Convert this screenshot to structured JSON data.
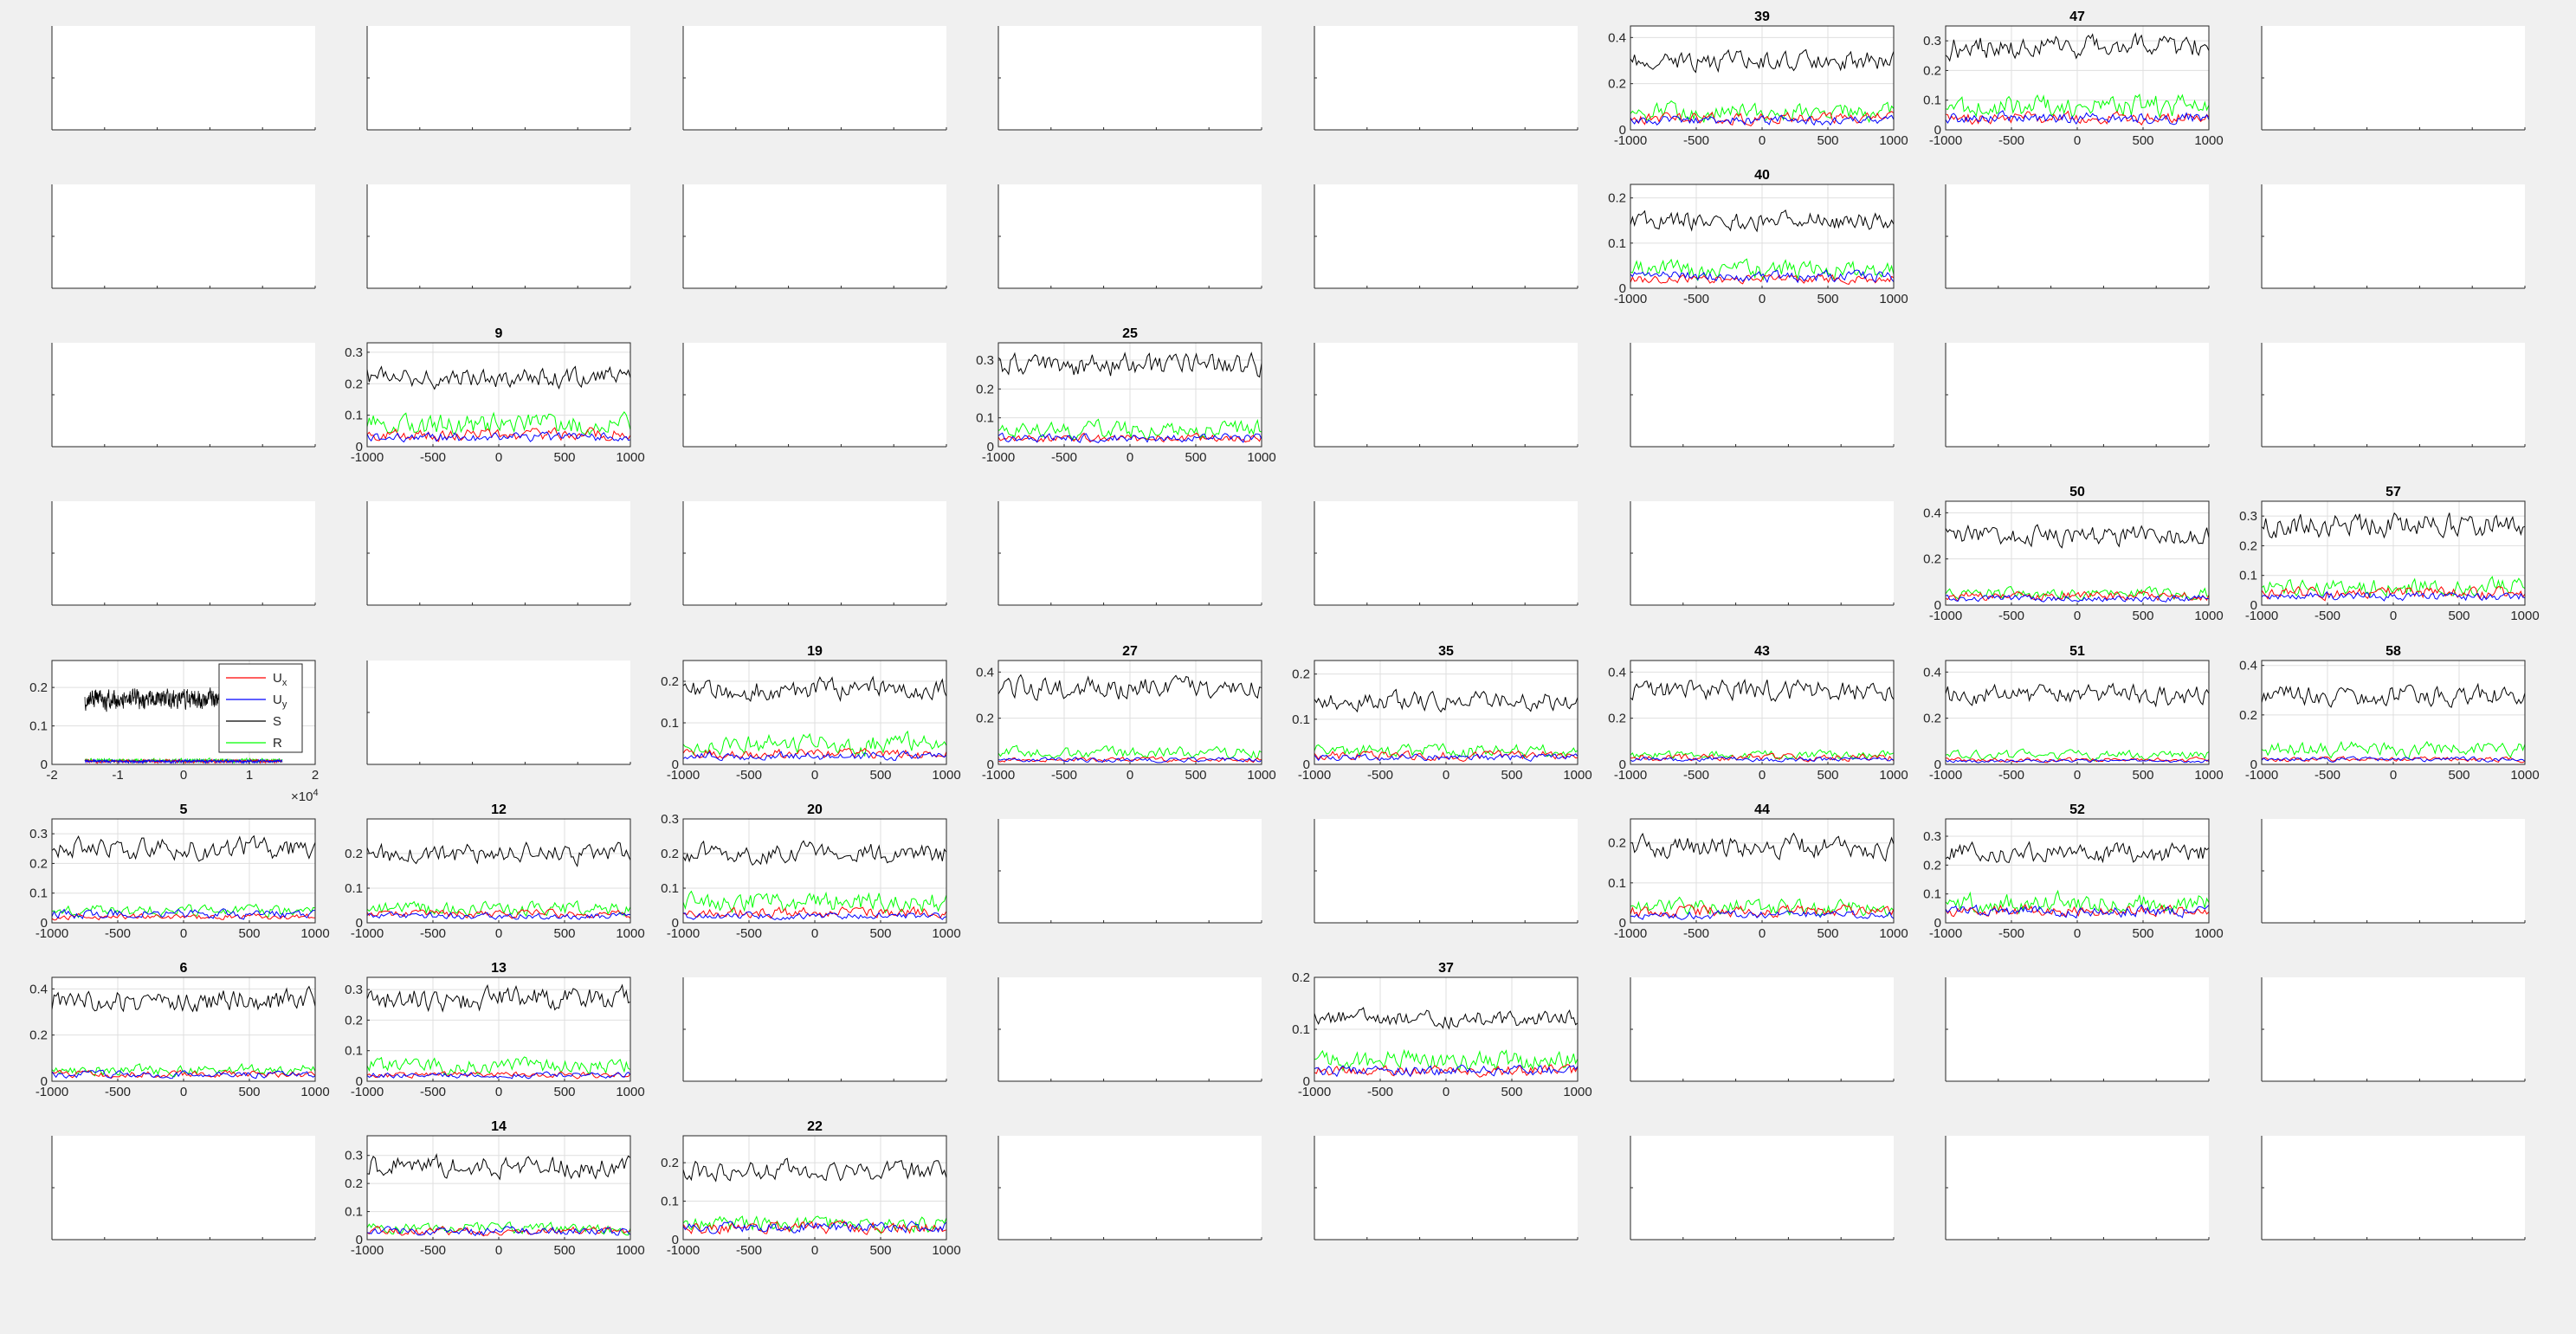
{
  "colors": {
    "background": "#f0f0f0",
    "axes_background": "#ffffff",
    "axes_box": "#262626",
    "grid": "#dfdfdf",
    "series": {
      "Ux": "#ff0000",
      "Uy": "#0000ff",
      "S": "#000000",
      "R": "#00ff00"
    }
  },
  "legend": {
    "entries": [
      {
        "name": "U",
        "sub": "x",
        "series": "Ux"
      },
      {
        "name": "U",
        "sub": "y",
        "series": "Uy"
      },
      {
        "name": "S",
        "sub": "",
        "series": "S"
      },
      {
        "name": "R",
        "sub": "",
        "series": "R"
      }
    ]
  },
  "chart_data": {
    "type": "line",
    "grid": true,
    "layout": "8x8 subplot grid",
    "xlim": [
      -1000,
      1000
    ],
    "xticks": [
      -1000,
      -500,
      0,
      500,
      1000
    ],
    "empty_panel_xlim": [
      0,
      1
    ],
    "empty_panel_ylim": [
      0,
      1
    ],
    "panels": [
      {
        "row": 0,
        "col": 5,
        "title": "39",
        "ylim": [
          0,
          0.45
        ],
        "yticks": [
          0,
          0.2,
          0.4
        ],
        "series_mean": {
          "S": 0.3,
          "R": 0.08,
          "Ux": 0.05,
          "Uy": 0.04
        }
      },
      {
        "row": 0,
        "col": 6,
        "title": "47",
        "ylim": [
          0,
          0.35
        ],
        "yticks": [
          0,
          0.1,
          0.2,
          0.3
        ],
        "series_mean": {
          "S": 0.28,
          "R": 0.08,
          "Ux": 0.04,
          "Uy": 0.04
        }
      },
      {
        "row": 1,
        "col": 5,
        "title": "40",
        "ylim": [
          0,
          0.23
        ],
        "yticks": [
          0,
          0.1,
          0.2
        ],
        "series_mean": {
          "S": 0.15,
          "R": 0.04,
          "Ux": 0.02,
          "Uy": 0.025
        }
      },
      {
        "row": 2,
        "col": 1,
        "title": "9",
        "ylim": [
          0,
          0.33
        ],
        "yticks": [
          0,
          0.1,
          0.2,
          0.3
        ],
        "series_mean": {
          "S": 0.22,
          "R": 0.07,
          "Ux": 0.04,
          "Uy": 0.03
        }
      },
      {
        "row": 2,
        "col": 3,
        "title": "25",
        "ylim": [
          0,
          0.36
        ],
        "yticks": [
          0,
          0.1,
          0.2,
          0.3
        ],
        "series_mean": {
          "S": 0.28,
          "R": 0.06,
          "Ux": 0.03,
          "Uy": 0.03
        }
      },
      {
        "row": 3,
        "col": 6,
        "title": "50",
        "ylim": [
          0,
          0.45
        ],
        "yticks": [
          0,
          0.2,
          0.4
        ],
        "series_mean": {
          "S": 0.3,
          "R": 0.05,
          "Ux": 0.04,
          "Uy": 0.03
        }
      },
      {
        "row": 3,
        "col": 7,
        "title": "57",
        "ylim": [
          0,
          0.35
        ],
        "yticks": [
          0,
          0.1,
          0.2,
          0.3
        ],
        "series_mean": {
          "S": 0.27,
          "R": 0.06,
          "Ux": 0.04,
          "Uy": 0.03
        }
      },
      {
        "row": 4,
        "col": 0,
        "title": "",
        "legend": true,
        "xlim": [
          -20000,
          20000
        ],
        "xticks": [
          -20000,
          -10000,
          0,
          10000,
          20000
        ],
        "xticklabels": [
          "-2",
          "-1",
          "0",
          "1",
          "2"
        ],
        "x_exponent": "4",
        "xrange_data": [
          -15000,
          15000
        ],
        "ylim": [
          0,
          0.27
        ],
        "yticks": [
          0,
          0.1,
          0.2
        ],
        "series_mean": {
          "S": 0.17,
          "R": 0.01,
          "Ux": 0.008,
          "Uy": 0.008
        }
      },
      {
        "row": 4,
        "col": 2,
        "title": "19",
        "ylim": [
          0,
          0.25
        ],
        "yticks": [
          0,
          0.1,
          0.2
        ],
        "series_mean": {
          "S": 0.18,
          "R": 0.05,
          "Ux": 0.025,
          "Uy": 0.02
        }
      },
      {
        "row": 4,
        "col": 3,
        "title": "27",
        "ylim": [
          0,
          0.45
        ],
        "yticks": [
          0,
          0.2,
          0.4
        ],
        "series_mean": {
          "S": 0.33,
          "R": 0.05,
          "Ux": 0.02,
          "Uy": 0.02
        }
      },
      {
        "row": 4,
        "col": 4,
        "title": "35",
        "ylim": [
          0,
          0.23
        ],
        "yticks": [
          0,
          0.1,
          0.2
        ],
        "series_mean": {
          "S": 0.14,
          "R": 0.03,
          "Ux": 0.02,
          "Uy": 0.015
        }
      },
      {
        "row": 4,
        "col": 5,
        "title": "43",
        "ylim": [
          0,
          0.45
        ],
        "yticks": [
          0,
          0.2,
          0.4
        ],
        "series_mean": {
          "S": 0.32,
          "R": 0.04,
          "Ux": 0.03,
          "Uy": 0.02
        }
      },
      {
        "row": 4,
        "col": 6,
        "title": "51",
        "ylim": [
          0,
          0.45
        ],
        "yticks": [
          0,
          0.2,
          0.4
        ],
        "series_mean": {
          "S": 0.3,
          "R": 0.04,
          "Ux": 0.02,
          "Uy": 0.015
        }
      },
      {
        "row": 4,
        "col": 7,
        "title": "58",
        "ylim": [
          0,
          0.42
        ],
        "yticks": [
          0,
          0.2,
          0.4
        ],
        "series_mean": {
          "S": 0.28,
          "R": 0.06,
          "Ux": 0.02,
          "Uy": 0.02
        }
      },
      {
        "row": 5,
        "col": 0,
        "title": "5",
        "ylim": [
          0,
          0.35
        ],
        "yticks": [
          0,
          0.1,
          0.2,
          0.3
        ],
        "series_mean": {
          "S": 0.25,
          "R": 0.04,
          "Ux": 0.02,
          "Uy": 0.03
        }
      },
      {
        "row": 5,
        "col": 1,
        "title": "12",
        "ylim": [
          0,
          0.3
        ],
        "yticks": [
          0,
          0.1,
          0.2
        ],
        "series_mean": {
          "S": 0.2,
          "R": 0.04,
          "Ux": 0.025,
          "Uy": 0.02
        }
      },
      {
        "row": 5,
        "col": 2,
        "title": "20",
        "ylim": [
          0,
          0.3
        ],
        "yticks": [
          0,
          0.1,
          0.2,
          0.3
        ],
        "series_mean": {
          "S": 0.2,
          "R": 0.06,
          "Ux": 0.03,
          "Uy": 0.02
        }
      },
      {
        "row": 5,
        "col": 5,
        "title": "44",
        "ylim": [
          0,
          0.26
        ],
        "yticks": [
          0,
          0.1,
          0.2
        ],
        "series_mean": {
          "S": 0.19,
          "R": 0.04,
          "Ux": 0.03,
          "Uy": 0.02
        }
      },
      {
        "row": 5,
        "col": 6,
        "title": "52",
        "ylim": [
          0,
          0.36
        ],
        "yticks": [
          0,
          0.1,
          0.2,
          0.3
        ],
        "series_mean": {
          "S": 0.24,
          "R": 0.07,
          "Ux": 0.04,
          "Uy": 0.04
        }
      },
      {
        "row": 6,
        "col": 0,
        "title": "6",
        "ylim": [
          0,
          0.45
        ],
        "yticks": [
          0,
          0.2,
          0.4
        ],
        "series_mean": {
          "S": 0.35,
          "R": 0.05,
          "Ux": 0.03,
          "Uy": 0.03
        }
      },
      {
        "row": 6,
        "col": 1,
        "title": "13",
        "ylim": [
          0,
          0.34
        ],
        "yticks": [
          0,
          0.1,
          0.2,
          0.3
        ],
        "series_mean": {
          "S": 0.27,
          "R": 0.05,
          "Ux": 0.02,
          "Uy": 0.02
        }
      },
      {
        "row": 6,
        "col": 4,
        "title": "37",
        "ylim": [
          0,
          0.2
        ],
        "yticks": [
          0,
          0.1,
          0.2
        ],
        "series_mean": {
          "S": 0.12,
          "R": 0.04,
          "Ux": 0.02,
          "Uy": 0.02
        }
      },
      {
        "row": 7,
        "col": 1,
        "title": "14",
        "ylim": [
          0,
          0.37
        ],
        "yticks": [
          0,
          0.1,
          0.2,
          0.3
        ],
        "series_mean": {
          "S": 0.26,
          "R": 0.04,
          "Ux": 0.03,
          "Uy": 0.03
        }
      },
      {
        "row": 7,
        "col": 2,
        "title": "22",
        "ylim": [
          0,
          0.27
        ],
        "yticks": [
          0,
          0.1,
          0.2
        ],
        "series_mean": {
          "S": 0.18,
          "R": 0.04,
          "Ux": 0.03,
          "Uy": 0.03
        }
      }
    ]
  }
}
